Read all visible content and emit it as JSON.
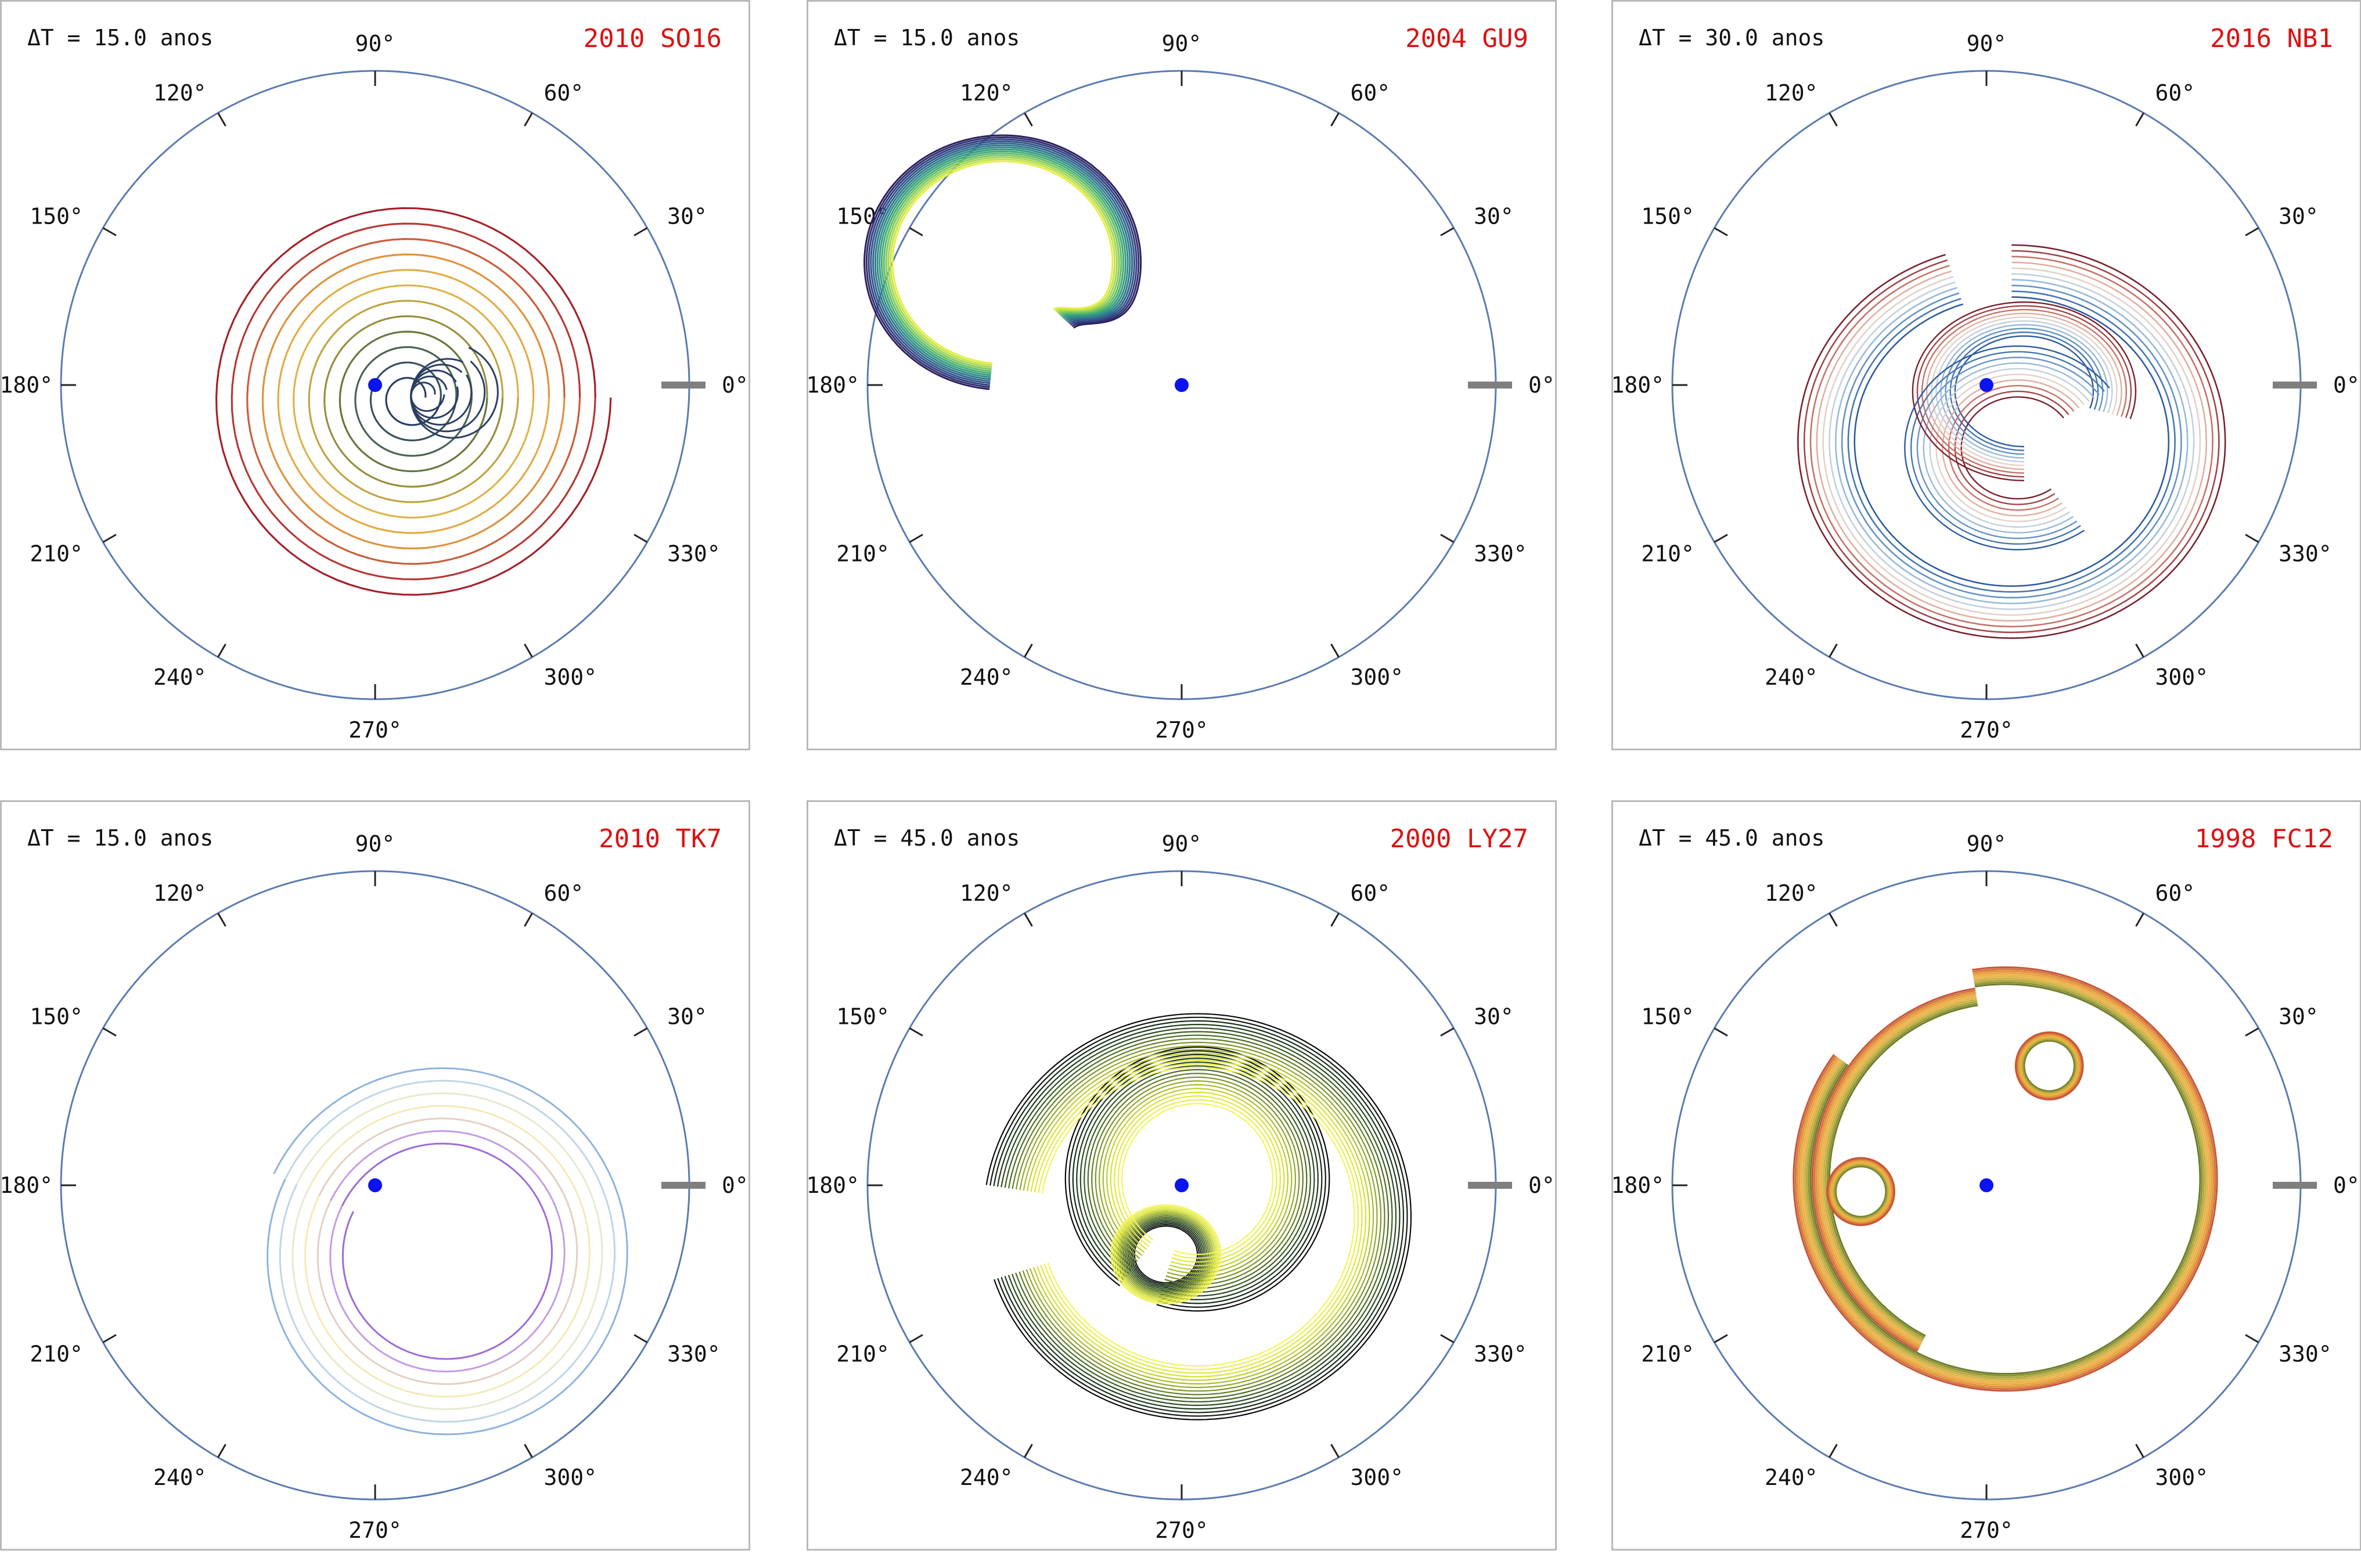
{
  "axis": {
    "angle_labels": [
      "0°",
      "30°",
      "60°",
      "90°",
      "120°",
      "150°",
      "180°",
      "210°",
      "240°",
      "270°",
      "300°",
      "330°"
    ],
    "circle_color": "#5b7bb0",
    "center_marker_color": "#0a14ee",
    "reference_bar_color": "#7f7f7f"
  },
  "panels": [
    {
      "dt_text": "ΔT = 15.0 anos",
      "name": "2010 SO16",
      "title_color": "#dd1111"
    },
    {
      "dt_text": "ΔT = 15.0 anos",
      "name": "2004 GU9",
      "title_color": "#dd1111"
    },
    {
      "dt_text": "ΔT = 30.0 anos",
      "name": "2016 NB1",
      "title_color": "#dd1111"
    },
    {
      "dt_text": "ΔT = 15.0 anos",
      "name": "2010 TK7",
      "title_color": "#dd1111"
    },
    {
      "dt_text": "ΔT = 45.0 anos",
      "name": "2000 LY27",
      "title_color": "#dd1111"
    },
    {
      "dt_text": "ΔT = 45.0 anos",
      "name": "1998 FC12",
      "title_color": "#dd1111"
    }
  ],
  "chart_data": [
    {
      "type": "polar",
      "object": "2010 SO16",
      "dt_years": 15.0,
      "r_max": 1.0,
      "trajectory": {
        "shape": "spiral",
        "center": [
          0.11,
          -0.04
        ],
        "r_inner": 0.05,
        "r_outer": 0.64,
        "turns": 12,
        "colors": [
          "#2b3f63",
          "#3f5a5a",
          "#6a7a3a",
          "#b9a040",
          "#e6b84a",
          "#e39a3c",
          "#c0463a",
          "#a3202a"
        ]
      }
    },
    {
      "type": "polar",
      "object": "2004 GU9",
      "dt_years": 15.0,
      "r_max": 1.0,
      "trajectory": {
        "shape": "horseshoe-loop",
        "center": [
          -0.57,
          0.39
        ],
        "radius": 0.44,
        "n_strands": 14,
        "colors": [
          "#2d1e5e",
          "#354c8c",
          "#2f7e8e",
          "#3caa78",
          "#8fd05a",
          "#e6ef45"
        ]
      }
    },
    {
      "type": "polar",
      "object": "2016 NB1",
      "dt_years": 30.0,
      "r_max": 1.0,
      "trajectory": {
        "shape": "double-loop",
        "n_strands": 10,
        "colors": [
          "#7a1f2e",
          "#c1665e",
          "#f0d2c0",
          "#b8cfe3",
          "#5b8cc0",
          "#2c5aa0"
        ]
      }
    },
    {
      "type": "polar",
      "object": "2010 TK7",
      "dt_years": 15.0,
      "r_max": 1.0,
      "trajectory": {
        "shape": "spiral",
        "center": [
          0.22,
          -0.22
        ],
        "r_inner": 0.32,
        "r_outer": 0.6,
        "turns": 7,
        "colors": [
          "#9d6bd8",
          "#c9a7e8",
          "#f2e3b0",
          "#f5f0c0",
          "#c9dde9",
          "#8eb3de"
        ]
      }
    },
    {
      "type": "polar",
      "object": "2000 LY27",
      "dt_years": 45.0,
      "r_max": 1.0,
      "trajectory": {
        "shape": "spiral-ribbon",
        "n_strands": 16,
        "colors": [
          "#0a0a0a",
          "#1f3a1e",
          "#4d6b23",
          "#93a82a",
          "#d7e232",
          "#f3f55a"
        ]
      }
    },
    {
      "type": "polar",
      "object": "1998 FC12",
      "dt_years": 45.0,
      "r_max": 1.0,
      "trajectory": {
        "shape": "two-loop-ribbon",
        "n_strands": 10,
        "colors": [
          "#6a7d2a",
          "#b9ad3f",
          "#f0b64a",
          "#e59a3a",
          "#c7553a"
        ]
      }
    }
  ]
}
